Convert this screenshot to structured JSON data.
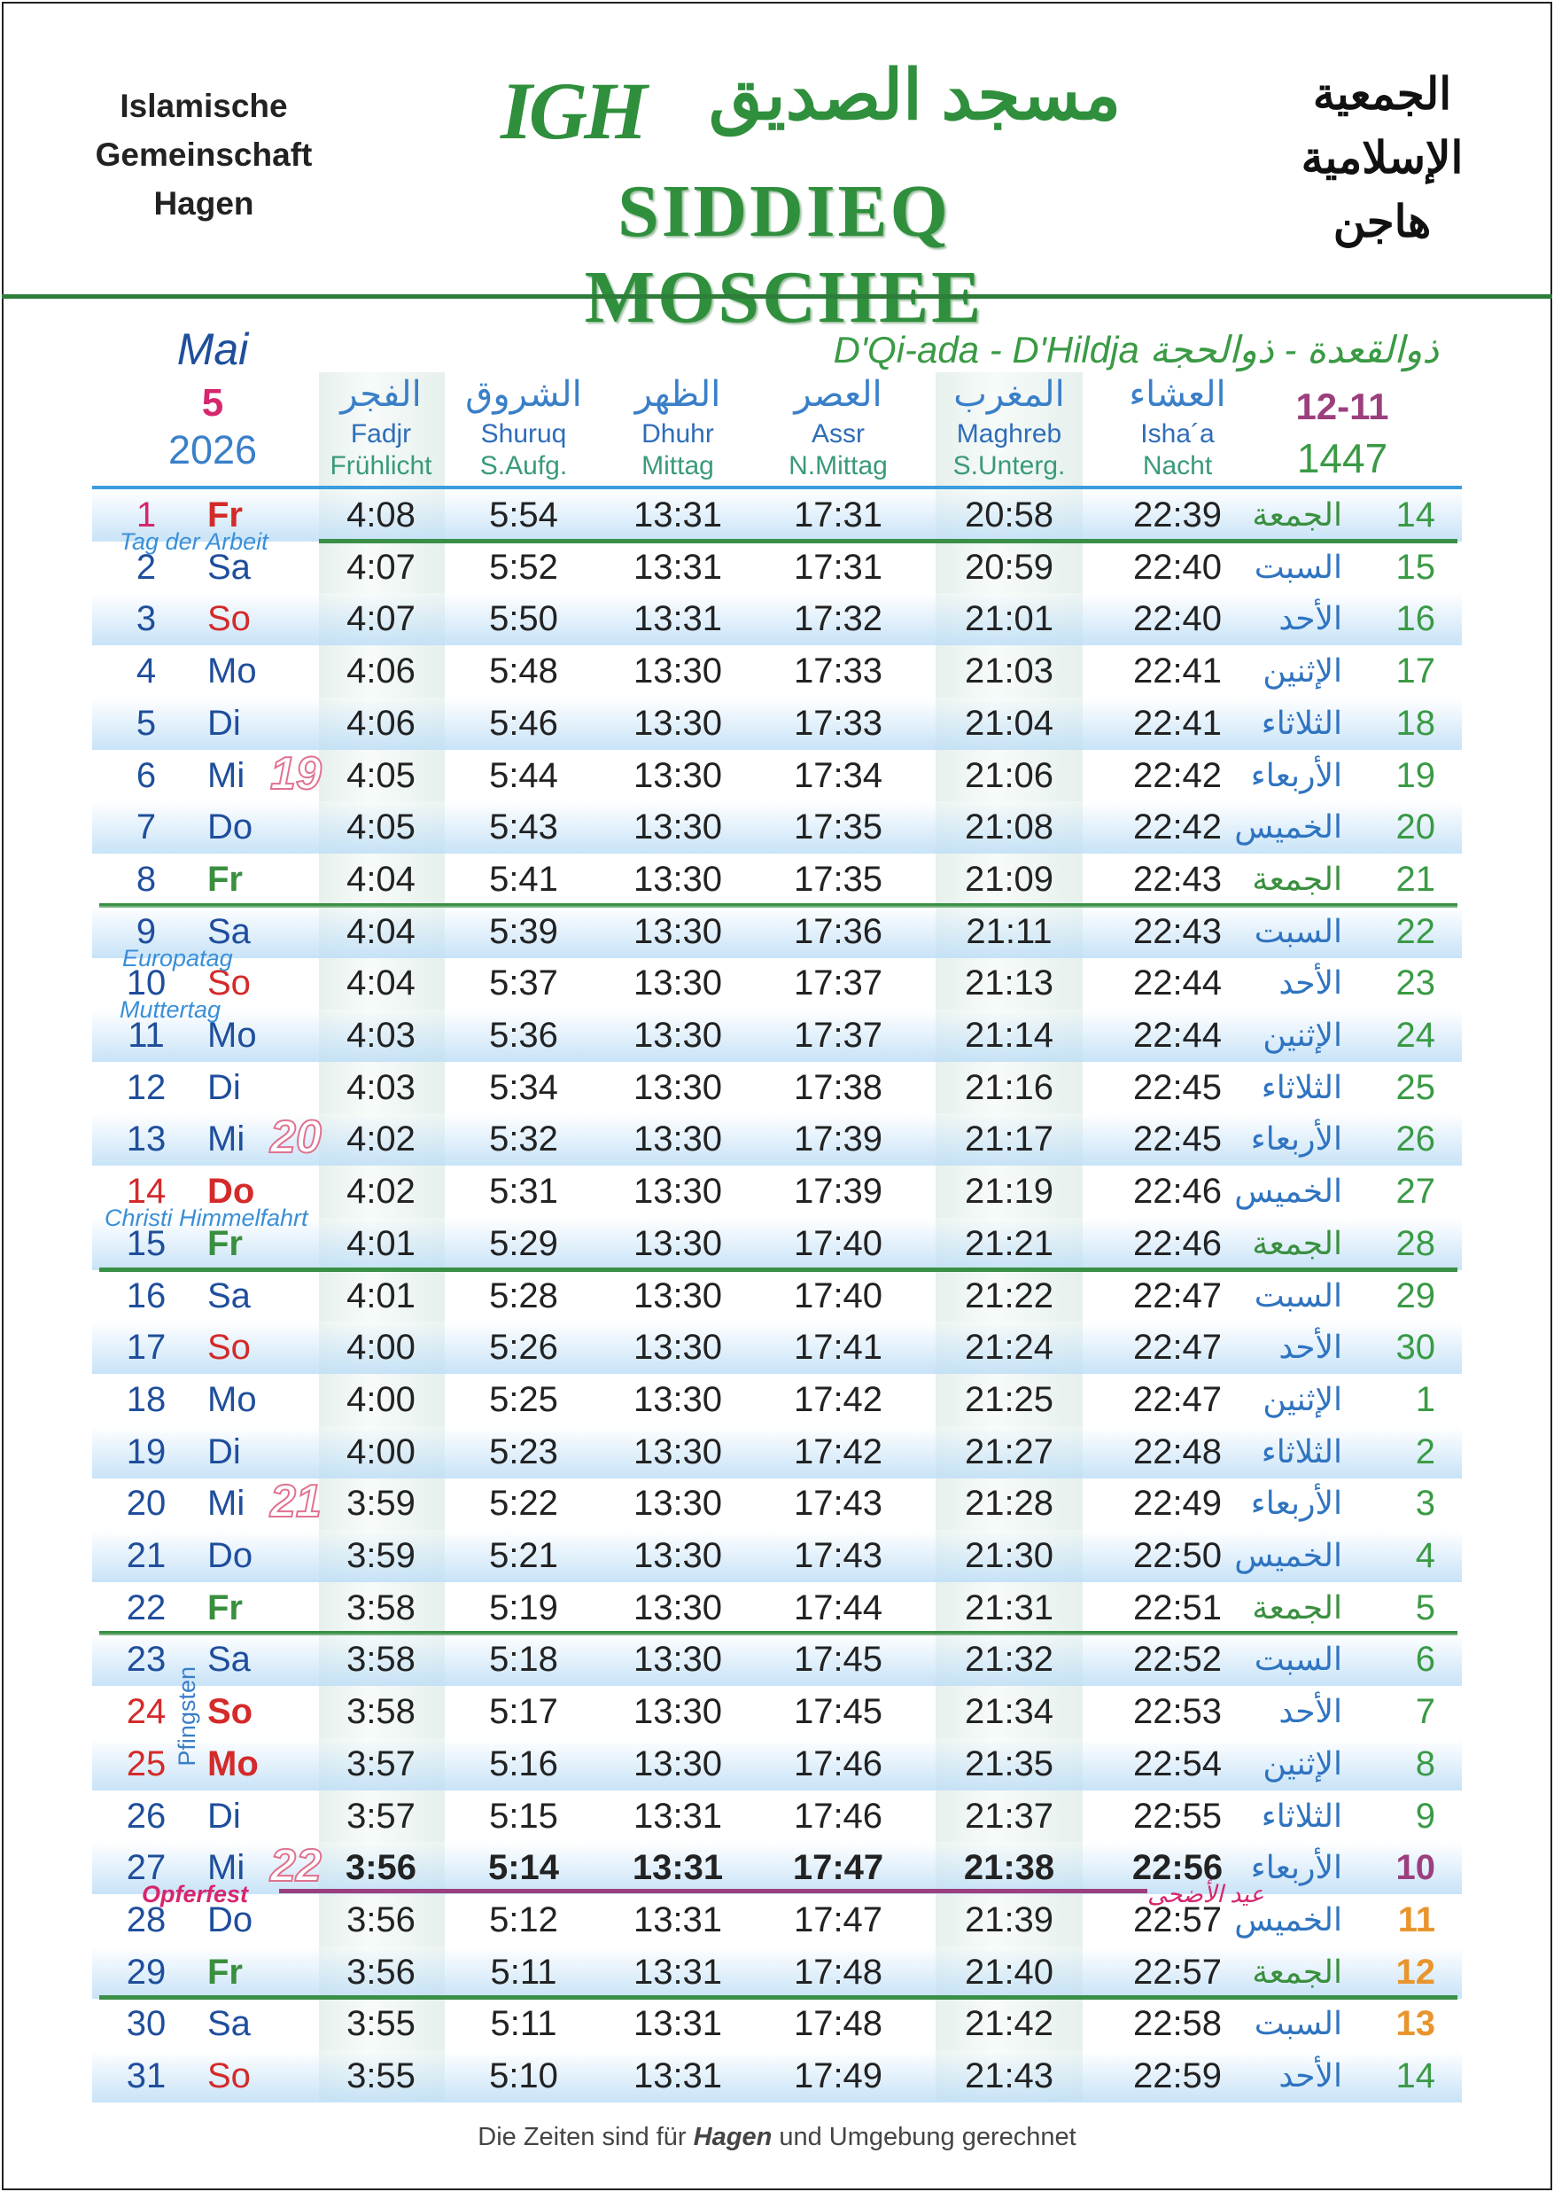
{
  "header": {
    "org_de": [
      "Islamische",
      "Gemeinschaft",
      "Hagen"
    ],
    "org_ar": [
      "الجمعية",
      "الإسلامية",
      "هاجن"
    ],
    "logo_letters": "IGH",
    "logo_arabic": "مسجد الصديق",
    "logo_title": "SIDDIEQ MOSCHEE"
  },
  "calendar": {
    "month": "Mai",
    "month_number": "5",
    "year": "2026",
    "hijri_title": "D'Qi-ada - D'Hildja ذوالقعدة - ذوالحجة",
    "hijri_months": "12-11",
    "hijri_year": "1447"
  },
  "columns": [
    {
      "ar": "الفجر",
      "name": "Fadjr",
      "de": "Frühlicht"
    },
    {
      "ar": "الشروق",
      "name": "Shuruq",
      "de": "S.Aufg."
    },
    {
      "ar": "الظهر",
      "name": "Dhuhr",
      "de": "Mittag"
    },
    {
      "ar": "العصر",
      "name": "Assr",
      "de": "N.Mittag"
    },
    {
      "ar": "المغرب",
      "name": "Maghreb",
      "de": "S.Unterg."
    },
    {
      "ar": "العشاء",
      "name": "Isha´a",
      "de": "Nacht"
    }
  ],
  "colors": {
    "blue": "#1f4e9c",
    "sunday_red": "#d42a2a",
    "friday_green": "#3a8f3f",
    "hijri_green": "#3a9a45",
    "eid_purple": "#9b3f7e",
    "tashreeq_orange": "#e8952e",
    "first_day_pink": "#d6266e"
  },
  "rows": [
    {
      "d": "1",
      "w": "Fr",
      "t": [
        "4:08",
        "5:54",
        "13:31",
        "17:31",
        "20:58",
        "22:39"
      ],
      "a": "الجمعة",
      "h": "14"
    },
    {
      "d": "2",
      "w": "Sa",
      "t": [
        "4:07",
        "5:52",
        "13:31",
        "17:31",
        "20:59",
        "22:40"
      ],
      "a": "السبت",
      "h": "15"
    },
    {
      "d": "3",
      "w": "So",
      "t": [
        "4:07",
        "5:50",
        "13:31",
        "17:32",
        "21:01",
        "22:40"
      ],
      "a": "الأحد",
      "h": "16"
    },
    {
      "d": "4",
      "w": "Mo",
      "t": [
        "4:06",
        "5:48",
        "13:30",
        "17:33",
        "21:03",
        "22:41"
      ],
      "a": "الإثنين",
      "h": "17"
    },
    {
      "d": "5",
      "w": "Di",
      "t": [
        "4:06",
        "5:46",
        "13:30",
        "17:33",
        "21:04",
        "22:41"
      ],
      "a": "الثلاثاء",
      "h": "18"
    },
    {
      "d": "6",
      "w": "Mi",
      "t": [
        "4:05",
        "5:44",
        "13:30",
        "17:34",
        "21:06",
        "22:42"
      ],
      "a": "الأربعاء",
      "h": "19"
    },
    {
      "d": "7",
      "w": "Do",
      "t": [
        "4:05",
        "5:43",
        "13:30",
        "17:35",
        "21:08",
        "22:42"
      ],
      "a": "الخميس",
      "h": "20"
    },
    {
      "d": "8",
      "w": "Fr",
      "t": [
        "4:04",
        "5:41",
        "13:30",
        "17:35",
        "21:09",
        "22:43"
      ],
      "a": "الجمعة",
      "h": "21"
    },
    {
      "d": "9",
      "w": "Sa",
      "t": [
        "4:04",
        "5:39",
        "13:30",
        "17:36",
        "21:11",
        "22:43"
      ],
      "a": "السبت",
      "h": "22"
    },
    {
      "d": "10",
      "w": "So",
      "t": [
        "4:04",
        "5:37",
        "13:30",
        "17:37",
        "21:13",
        "22:44"
      ],
      "a": "الأحد",
      "h": "23"
    },
    {
      "d": "11",
      "w": "Mo",
      "t": [
        "4:03",
        "5:36",
        "13:30",
        "17:37",
        "21:14",
        "22:44"
      ],
      "a": "الإثنين",
      "h": "24"
    },
    {
      "d": "12",
      "w": "Di",
      "t": [
        "4:03",
        "5:34",
        "13:30",
        "17:38",
        "21:16",
        "22:45"
      ],
      "a": "الثلاثاء",
      "h": "25"
    },
    {
      "d": "13",
      "w": "Mi",
      "t": [
        "4:02",
        "5:32",
        "13:30",
        "17:39",
        "21:17",
        "22:45"
      ],
      "a": "الأربعاء",
      "h": "26"
    },
    {
      "d": "14",
      "w": "Do",
      "t": [
        "4:02",
        "5:31",
        "13:30",
        "17:39",
        "21:19",
        "22:46"
      ],
      "a": "الخميس",
      "h": "27"
    },
    {
      "d": "15",
      "w": "Fr",
      "t": [
        "4:01",
        "5:29",
        "13:30",
        "17:40",
        "21:21",
        "22:46"
      ],
      "a": "الجمعة",
      "h": "28"
    },
    {
      "d": "16",
      "w": "Sa",
      "t": [
        "4:01",
        "5:28",
        "13:30",
        "17:40",
        "21:22",
        "22:47"
      ],
      "a": "السبت",
      "h": "29"
    },
    {
      "d": "17",
      "w": "So",
      "t": [
        "4:00",
        "5:26",
        "13:30",
        "17:41",
        "21:24",
        "22:47"
      ],
      "a": "الأحد",
      "h": "30"
    },
    {
      "d": "18",
      "w": "Mo",
      "t": [
        "4:00",
        "5:25",
        "13:30",
        "17:42",
        "21:25",
        "22:47"
      ],
      "a": "الإثنين",
      "h": "1"
    },
    {
      "d": "19",
      "w": "Di",
      "t": [
        "4:00",
        "5:23",
        "13:30",
        "17:42",
        "21:27",
        "22:48"
      ],
      "a": "الثلاثاء",
      "h": "2"
    },
    {
      "d": "20",
      "w": "Mi",
      "t": [
        "3:59",
        "5:22",
        "13:30",
        "17:43",
        "21:28",
        "22:49"
      ],
      "a": "الأربعاء",
      "h": "3"
    },
    {
      "d": "21",
      "w": "Do",
      "t": [
        "3:59",
        "5:21",
        "13:30",
        "17:43",
        "21:30",
        "22:50"
      ],
      "a": "الخميس",
      "h": "4"
    },
    {
      "d": "22",
      "w": "Fr",
      "t": [
        "3:58",
        "5:19",
        "13:30",
        "17:44",
        "21:31",
        "22:51"
      ],
      "a": "الجمعة",
      "h": "5"
    },
    {
      "d": "23",
      "w": "Sa",
      "t": [
        "3:58",
        "5:18",
        "13:30",
        "17:45",
        "21:32",
        "22:52"
      ],
      "a": "السبت",
      "h": "6"
    },
    {
      "d": "24",
      "w": "So",
      "t": [
        "3:58",
        "5:17",
        "13:30",
        "17:45",
        "21:34",
        "22:53"
      ],
      "a": "الأحد",
      "h": "7"
    },
    {
      "d": "25",
      "w": "Mo",
      "t": [
        "3:57",
        "5:16",
        "13:30",
        "17:46",
        "21:35",
        "22:54"
      ],
      "a": "الإثنين",
      "h": "8"
    },
    {
      "d": "26",
      "w": "Di",
      "t": [
        "3:57",
        "5:15",
        "13:31",
        "17:46",
        "21:37",
        "22:55"
      ],
      "a": "الثلاثاء",
      "h": "9"
    },
    {
      "d": "27",
      "w": "Mi",
      "t": [
        "3:56",
        "5:14",
        "13:31",
        "17:47",
        "21:38",
        "22:56"
      ],
      "a": "الأربعاء",
      "h": "10"
    },
    {
      "d": "28",
      "w": "Do",
      "t": [
        "3:56",
        "5:12",
        "13:31",
        "17:47",
        "21:39",
        "22:57"
      ],
      "a": "الخميس",
      "h": "11"
    },
    {
      "d": "29",
      "w": "Fr",
      "t": [
        "3:56",
        "5:11",
        "13:31",
        "17:48",
        "21:40",
        "22:57"
      ],
      "a": "الجمعة",
      "h": "12"
    },
    {
      "d": "30",
      "w": "Sa",
      "t": [
        "3:55",
        "5:11",
        "13:31",
        "17:48",
        "21:42",
        "22:58"
      ],
      "a": "السبت",
      "h": "13"
    },
    {
      "d": "31",
      "w": "So",
      "t": [
        "3:55",
        "5:10",
        "13:31",
        "17:49",
        "21:43",
        "22:59"
      ],
      "a": "الأحد",
      "h": "14"
    }
  ],
  "week_numbers": [
    {
      "row": 5,
      "n": "19"
    },
    {
      "row": 12,
      "n": "20"
    },
    {
      "row": 19,
      "n": "21"
    },
    {
      "row": 26,
      "n": "22"
    }
  ],
  "holidays": [
    {
      "row": 0,
      "text": "Tag der Arbeit"
    },
    {
      "row": 8,
      "text": "Europatag"
    },
    {
      "row": 9,
      "text": "Muttertag"
    },
    {
      "row": 13,
      "text": "Christi Himmelfahrt"
    },
    {
      "row": 23,
      "text": "Pfingsten"
    },
    {
      "row": 26,
      "text": "Opferfest"
    },
    {
      "row": 26,
      "text": "عيد الأضحى"
    }
  ],
  "footer": {
    "prefix": "Die Zeiten sind für ",
    "city": "Hagen",
    "suffix": " und Umgebung gerechnet"
  }
}
